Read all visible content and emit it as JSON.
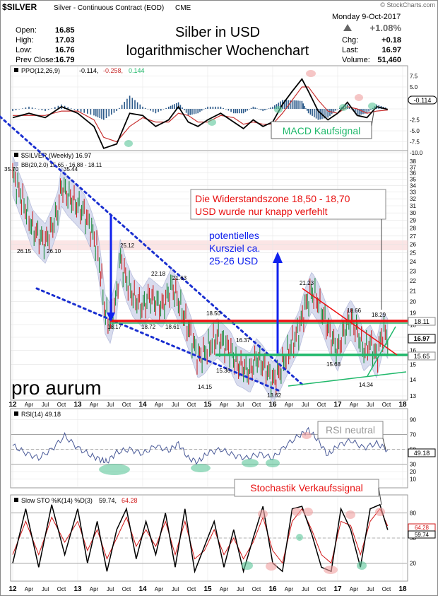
{
  "header": {
    "symbol": "$SILVER",
    "description": "Silver - Continuous Contract (EOD)",
    "exchange": "CME",
    "credit": "© StockCharts.com",
    "date": "Monday  9-Oct-2017",
    "stats_left": [
      {
        "label": "Open:",
        "value": "16.85"
      },
      {
        "label": "High:",
        "value": "17.03"
      },
      {
        "label": "Low:",
        "value": "16.76"
      },
      {
        "label": "Prev Close:",
        "value": "16.79"
      }
    ],
    "change_pct": "+1.08%",
    "stats_right": [
      {
        "label": "Chg:",
        "value": "+0.18"
      },
      {
        "label": "Last:",
        "value": "16.97"
      },
      {
        "label": "Volume:",
        "value": "51,460"
      }
    ],
    "title_line1": "Silber in USD",
    "title_line2": "logarithmischer Wochenchart"
  },
  "colors": {
    "price_bar": "#cc2222",
    "bb_fill": "#d8dcee",
    "dotted_line": "#1a2fd0",
    "support_green": "#1fb86a",
    "resistance_red": "#ee1111",
    "arrow_blue": "#1122ee",
    "annotation_red": "#e81010",
    "ppo_line": "#000000",
    "signal_line": "#c83232",
    "hist": "#2c5a8a",
    "rsi_line": "#4a5a98",
    "sto_k": "#000000",
    "sto_d": "#d01818"
  },
  "chart_data": [
    {
      "type": "line",
      "panel": "PPO",
      "legend": [
        "PPO(12,26,9)",
        "-0.114,",
        "-0.258,",
        "0.144"
      ],
      "ylim": [
        -10,
        7.5
      ],
      "y_ticks": [
        "7.5",
        "5.0",
        "2.5",
        "",
        "-2.5",
        "-5.0",
        "-7.5",
        "-10.0"
      ],
      "last_label": "-0.114",
      "x_range": [
        2012.0,
        2018.0
      ],
      "series": [
        {
          "name": "PPO(12,26,9)",
          "x": [
            2012.0,
            2012.25,
            2012.5,
            2012.75,
            2013.0,
            2013.25,
            2013.4,
            2013.6,
            2013.8,
            2014.0,
            2014.2,
            2014.4,
            2014.55,
            2014.7,
            2014.85,
            2015.0,
            2015.2,
            2015.4,
            2015.55,
            2015.7,
            2015.85,
            2016.0,
            2016.15,
            2016.3,
            2016.45,
            2016.55,
            2016.7,
            2016.85,
            2017.0,
            2017.15,
            2017.3,
            2017.45,
            2017.6,
            2017.77
          ],
          "y": [
            -2.0,
            -1.0,
            -2.0,
            0.5,
            -1.0,
            -4.0,
            -9.0,
            -8.0,
            -1.0,
            -1.5,
            -4.0,
            -2.5,
            0.5,
            -3.0,
            -4.0,
            -2.5,
            -1.0,
            -3.0,
            -4.5,
            -2.5,
            -4.0,
            -3.0,
            1.0,
            4.0,
            6.8,
            4.0,
            -0.5,
            -2.5,
            -1.0,
            1.5,
            -1.5,
            -2.0,
            0.5,
            -0.114
          ]
        },
        {
          "name": "signal",
          "x": [
            2012.0,
            2012.25,
            2012.5,
            2012.75,
            2013.0,
            2013.25,
            2013.4,
            2013.6,
            2013.8,
            2014.0,
            2014.2,
            2014.4,
            2014.55,
            2014.7,
            2014.85,
            2015.0,
            2015.2,
            2015.4,
            2015.55,
            2015.7,
            2015.85,
            2016.0,
            2016.15,
            2016.3,
            2016.45,
            2016.55,
            2016.7,
            2016.85,
            2017.0,
            2017.15,
            2017.3,
            2017.45,
            2017.6,
            2017.77
          ],
          "y": [
            -1.5,
            -1.5,
            -1.5,
            -0.5,
            -0.5,
            -2.5,
            -6.5,
            -7.5,
            -4.0,
            -2.0,
            -3.0,
            -3.0,
            -1.0,
            -1.5,
            -3.0,
            -3.0,
            -1.5,
            -2.0,
            -3.5,
            -3.0,
            -3.5,
            -3.5,
            -1.0,
            2.0,
            5.0,
            5.0,
            2.0,
            -0.5,
            -1.0,
            0.5,
            0.0,
            -1.0,
            -0.5,
            -0.258
          ]
        }
      ],
      "annotations": [
        {
          "text": "MACD Kaufsignal"
        }
      ]
    },
    {
      "type": "bar",
      "panel": "Price",
      "legend": [
        "$SILVER (Weekly) 16.97",
        "BB(20,2.0) 15.65 - 16.88 - 18.11"
      ],
      "scale": "log",
      "ylim": [
        13,
        38
      ],
      "y_ticks": [
        "38",
        "37",
        "36",
        "35",
        "34",
        "33",
        "32",
        "31",
        "30",
        "29",
        "28",
        "27",
        "26",
        "25",
        "24",
        "23",
        "22",
        "21",
        "20",
        "19",
        "18",
        "17",
        "16",
        "15",
        "14",
        "13"
      ],
      "x_range": [
        2012.0,
        2018.0
      ],
      "x": [
        2012.0,
        2012.1,
        2012.2,
        2012.3,
        2012.4,
        2012.5,
        2012.6,
        2012.7,
        2012.75,
        2012.85,
        2013.0,
        2013.1,
        2013.2,
        2013.3,
        2013.35,
        2013.42,
        2013.5,
        2013.6,
        2013.65,
        2013.75,
        2013.85,
        2014.0,
        2014.1,
        2014.2,
        2014.3,
        2014.45,
        2014.55,
        2014.65,
        2014.75,
        2014.85,
        2014.95,
        2015.05,
        2015.15,
        2015.25,
        2015.35,
        2015.45,
        2015.55,
        2015.65,
        2015.75,
        2015.85,
        2015.95,
        2016.0,
        2016.1,
        2016.2,
        2016.3,
        2016.4,
        2016.5,
        2016.6,
        2016.7,
        2016.8,
        2016.9,
        2017.0,
        2017.1,
        2017.2,
        2017.3,
        2017.4,
        2017.5,
        2017.6,
        2017.7,
        2017.77
      ],
      "y": [
        35.7,
        33.0,
        30.5,
        28.0,
        27.0,
        26.2,
        28.0,
        30.5,
        34.0,
        32.5,
        31.0,
        30.0,
        28.0,
        25.5,
        23.0,
        19.0,
        18.17,
        20.5,
        24.5,
        22.0,
        20.5,
        19.5,
        20.5,
        20.0,
        19.5,
        21.5,
        20.0,
        18.5,
        17.0,
        15.5,
        15.8,
        16.5,
        17.0,
        16.5,
        16.0,
        15.0,
        14.8,
        14.5,
        15.5,
        15.0,
        14.3,
        13.9,
        14.5,
        15.5,
        16.5,
        17.5,
        19.5,
        21.0,
        20.0,
        18.5,
        17.0,
        16.0,
        17.5,
        18.5,
        17.5,
        16.0,
        16.5,
        15.5,
        17.5,
        16.97
      ],
      "price_labels": [
        "35.70",
        "35.44",
        "26.15",
        "26.10",
        "25.12",
        "22.18",
        "21.63",
        "18.72",
        "18.61",
        "18.17",
        "18.50",
        "16.37",
        "15.36",
        "14.15",
        "13.62",
        "21.23",
        "18.66",
        "18.29",
        "15.68",
        "14.34"
      ],
      "right_tags": [
        "18.11",
        "16.97",
        "15.65"
      ],
      "annotations": [
        {
          "text": "Die Widerstandszone 18,50 - 18,70 USD wurde nur knapp verfehlt"
        },
        {
          "text": "potentielles Kursziel ca. 25-26 USD"
        }
      ],
      "resistance_level": 18.6,
      "support_level": 15.7,
      "logo": "pro aurum"
    },
    {
      "type": "line",
      "panel": "RSI",
      "legend": [
        "RSI(14) 49.18"
      ],
      "ylim": [
        0,
        100
      ],
      "y_ticks": [
        "90",
        "70",
        "50",
        "30",
        "20",
        "10"
      ],
      "last_label": "49.18",
      "x_range": [
        2012.0,
        2018.0
      ],
      "series": [
        {
          "name": "RSI(14)",
          "x": [
            2012.0,
            2012.2,
            2012.4,
            2012.6,
            2012.8,
            2013.0,
            2013.2,
            2013.35,
            2013.45,
            2013.6,
            2013.8,
            2014.0,
            2014.2,
            2014.4,
            2014.55,
            2014.7,
            2014.85,
            2015.0,
            2015.2,
            2015.4,
            2015.6,
            2015.8,
            2016.0,
            2016.2,
            2016.4,
            2016.55,
            2016.7,
            2016.85,
            2017.0,
            2017.2,
            2017.4,
            2017.6,
            2017.77
          ],
          "y": [
            55,
            45,
            38,
            50,
            68,
            52,
            42,
            36,
            33,
            46,
            50,
            44,
            55,
            48,
            58,
            38,
            33,
            45,
            50,
            42,
            38,
            44,
            38,
            55,
            68,
            76,
            62,
            42,
            55,
            62,
            52,
            58,
            49.18
          ]
        }
      ],
      "annotations": [
        {
          "text": "RSI neutral"
        }
      ]
    },
    {
      "type": "line",
      "panel": "Slow STO",
      "legend": [
        "Slow STO %K(14) %D(3)",
        "59.74,",
        "64.28"
      ],
      "ylim": [
        0,
        100
      ],
      "y_ticks": [
        "80",
        "50",
        "20"
      ],
      "last_labels": [
        "64.28",
        "59.74"
      ],
      "x_range": [
        2012.0,
        2018.0
      ],
      "series": [
        {
          "name": "%K(14)",
          "x": [
            2012.0,
            2012.2,
            2012.4,
            2012.6,
            2012.8,
            2013.0,
            2013.15,
            2013.3,
            2013.45,
            2013.6,
            2013.75,
            2013.9,
            2014.05,
            2014.2,
            2014.35,
            2014.5,
            2014.65,
            2014.8,
            2014.95,
            2015.1,
            2015.25,
            2015.4,
            2015.55,
            2015.7,
            2015.85,
            2016.0,
            2016.15,
            2016.3,
            2016.45,
            2016.6,
            2016.75,
            2016.9,
            2017.05,
            2017.2,
            2017.35,
            2017.5,
            2017.65,
            2017.77
          ],
          "y": [
            20,
            85,
            15,
            90,
            30,
            85,
            20,
            70,
            10,
            60,
            85,
            25,
            70,
            30,
            80,
            15,
            85,
            10,
            40,
            70,
            15,
            60,
            10,
            50,
            88,
            20,
            10,
            85,
            88,
            55,
            15,
            10,
            85,
            60,
            15,
            85,
            90,
            59.74
          ]
        },
        {
          "name": "%D(3)",
          "x": [
            2012.0,
            2012.2,
            2012.4,
            2012.6,
            2012.8,
            2013.0,
            2013.15,
            2013.3,
            2013.45,
            2013.6,
            2013.75,
            2013.9,
            2014.05,
            2014.2,
            2014.35,
            2014.5,
            2014.65,
            2014.8,
            2014.95,
            2015.1,
            2015.25,
            2015.4,
            2015.55,
            2015.7,
            2015.85,
            2016.0,
            2016.15,
            2016.3,
            2016.45,
            2016.6,
            2016.75,
            2016.9,
            2017.05,
            2017.2,
            2017.35,
            2017.5,
            2017.65,
            2017.77
          ],
          "y": [
            30,
            70,
            30,
            75,
            45,
            70,
            35,
            60,
            25,
            50,
            75,
            40,
            60,
            40,
            70,
            30,
            70,
            25,
            35,
            60,
            30,
            50,
            25,
            45,
            75,
            35,
            20,
            70,
            85,
            60,
            30,
            20,
            70,
            65,
            30,
            70,
            85,
            64.28
          ]
        }
      ],
      "annotations": [
        {
          "text": "Stochastik Verkaufssignal"
        }
      ]
    }
  ],
  "x_axis": {
    "labels": [
      "12",
      "Apr",
      "Jul",
      "Oct",
      "13",
      "Apr",
      "Jul",
      "Oct",
      "14",
      "Apr",
      "Jul",
      "Oct",
      "15",
      "Apr",
      "Jul",
      "Oct",
      "16",
      "Apr",
      "Jul",
      "Oct",
      "17",
      "Apr",
      "Jul",
      "Oct",
      "18"
    ]
  }
}
